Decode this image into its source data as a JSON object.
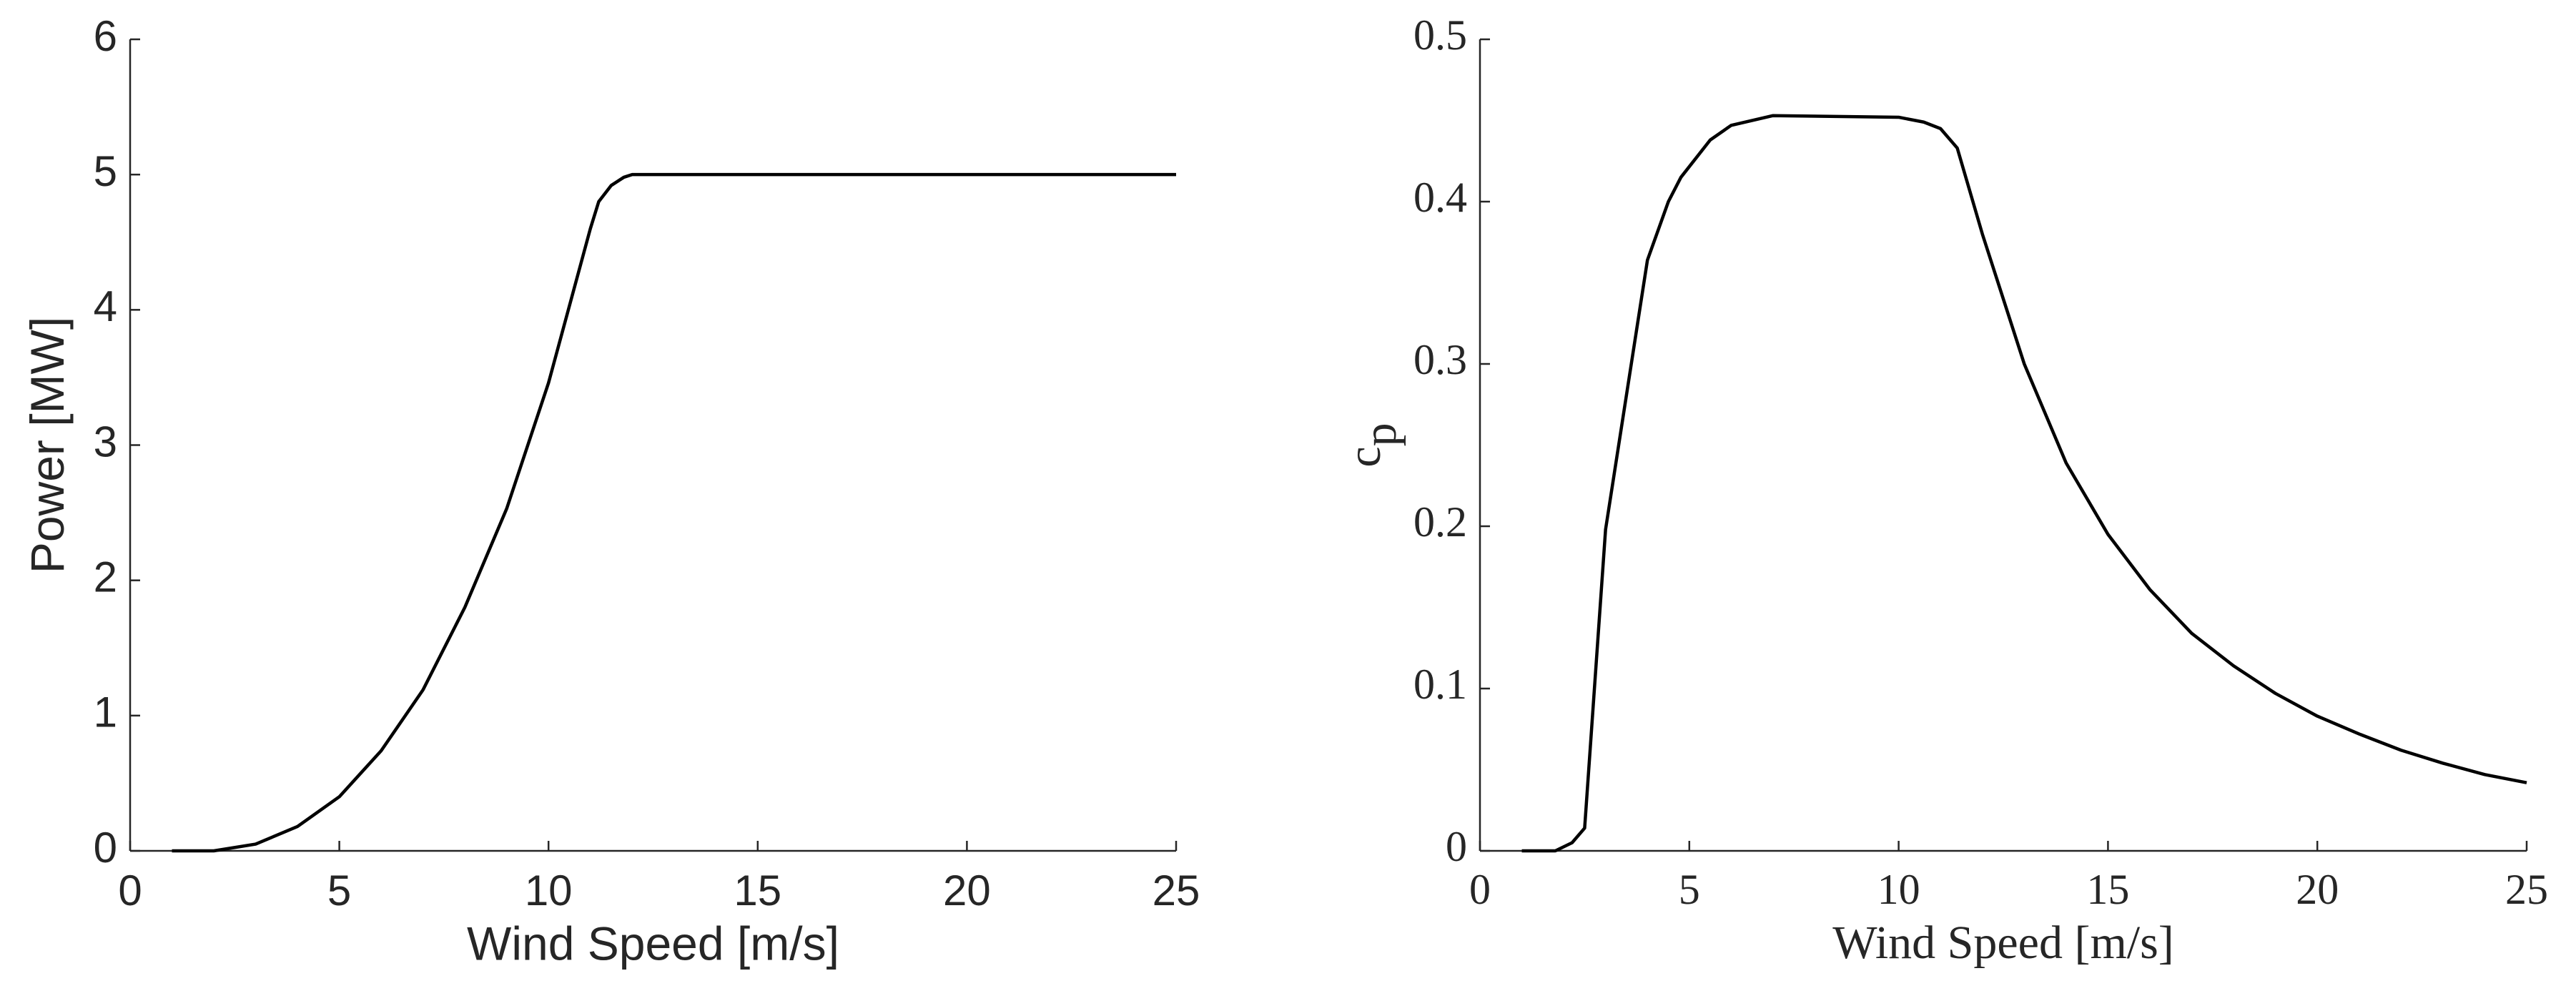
{
  "chart_data": [
    {
      "type": "line",
      "xlabel": "Wind Speed [m/s]",
      "ylabel": "Power [MW]",
      "x": [
        1,
        2,
        3,
        4,
        5,
        6,
        7,
        8,
        9,
        10,
        11,
        11.2,
        11.5,
        11.8,
        12,
        25
      ],
      "series": [
        {
          "color": "#000000",
          "values": [
            0,
            0,
            0.05,
            0.18,
            0.4,
            0.74,
            1.19,
            1.8,
            2.53,
            3.46,
            4.6,
            4.8,
            4.92,
            4.98,
            5,
            5
          ]
        }
      ],
      "xlim": [
        0,
        25
      ],
      "xticks": [
        0,
        5,
        10,
        15,
        20,
        25
      ],
      "ylim": [
        0,
        6
      ],
      "yticks": [
        0,
        1,
        2,
        3,
        4,
        5,
        6
      ]
    },
    {
      "type": "line",
      "xlabel": "Wind Speed [m/s]",
      "ylabel": "c",
      "ylabel_sub": "p",
      "x": [
        1,
        1.8,
        2.2,
        2.5,
        3,
        4,
        4.5,
        4.8,
        5.5,
        6,
        7,
        10,
        10.6,
        11,
        11.4,
        12,
        13,
        14,
        15,
        16,
        17,
        18,
        19,
        20,
        21,
        22,
        23,
        24,
        25
      ],
      "series": [
        {
          "color": "#000000",
          "values": [
            0,
            0,
            0.005,
            0.014,
            0.198,
            0.364,
            0.4,
            0.415,
            0.438,
            0.447,
            0.453,
            0.452,
            0.449,
            0.445,
            0.433,
            0.38,
            0.3,
            0.239,
            0.195,
            0.161,
            0.134,
            0.114,
            0.097,
            0.083,
            0.072,
            0.062,
            0.054,
            0.047,
            0.042
          ]
        }
      ],
      "xlim": [
        0,
        25
      ],
      "xticks": [
        0,
        5,
        10,
        15,
        20,
        25
      ],
      "ylim": [
        0,
        0.5
      ],
      "yticks": [
        0,
        0.1,
        0.2,
        0.3,
        0.4,
        0.5
      ]
    }
  ]
}
